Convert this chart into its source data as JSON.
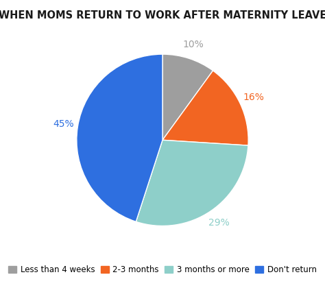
{
  "title": "WHEN MOMS RETURN TO WORK AFTER MATERNITY LEAVE",
  "slices": [
    10,
    16,
    29,
    45
  ],
  "labels": [
    "Less than 4 weeks",
    "2-3 months",
    "3 months or more",
    "Don't return"
  ],
  "colors": [
    "#9e9e9e",
    "#f26522",
    "#8ecfc9",
    "#2e6fe0"
  ],
  "pct_labels": [
    "10%",
    "16%",
    "29%",
    "45%"
  ],
  "pct_colors": [
    "#9e9e9e",
    "#f26522",
    "#8ecfc9",
    "#2e6fe0"
  ],
  "title_fontsize": 10.5,
  "legend_fontsize": 8.5,
  "pct_fontsize": 10,
  "startangle": 90,
  "background_color": "#ffffff"
}
